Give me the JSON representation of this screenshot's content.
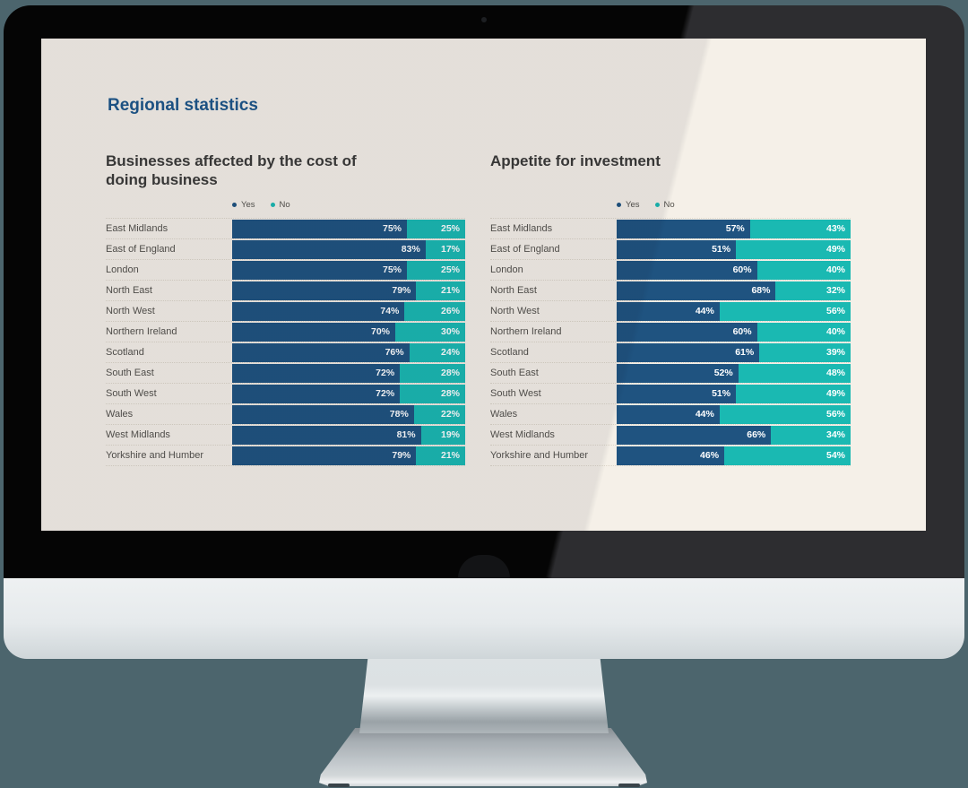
{
  "heading": {
    "title": "Regional statistics"
  },
  "colors": {
    "yes_bar": "#1f5380",
    "no_bar": "#1ab9b2",
    "heading_blue": "#1d5689",
    "chart_title_gray": "#3b3a38",
    "screen_background": "#f5f0e8",
    "desk_background": "#4c656d"
  },
  "chart_data": [
    {
      "type": "bar",
      "orientation": "horizontal",
      "stacked": true,
      "unit": "%",
      "xlim": [
        0,
        100
      ],
      "grid": false,
      "legend_position": "top",
      "title": "Businesses affected by the cost of doing business",
      "title_lines": [
        "Businesses affected by the cost of",
        "doing business"
      ],
      "legend": [
        "Yes",
        "No"
      ],
      "categories": [
        "East Midlands",
        "East of England",
        "London",
        "North East",
        "North West",
        "Northern Ireland",
        "Scotland",
        "South East",
        "South West",
        "Wales",
        "West Midlands",
        "Yorkshire and Humber"
      ],
      "series": [
        {
          "name": "Yes",
          "color": "#1f5380",
          "values": [
            75,
            83,
            75,
            79,
            74,
            70,
            76,
            72,
            72,
            78,
            81,
            79
          ]
        },
        {
          "name": "No",
          "color": "#1ab9b2",
          "values": [
            25,
            17,
            25,
            21,
            26,
            30,
            24,
            28,
            28,
            22,
            19,
            21
          ]
        }
      ],
      "data_labels": "percent-inside-right-aligned"
    },
    {
      "type": "bar",
      "orientation": "horizontal",
      "stacked": true,
      "unit": "%",
      "xlim": [
        0,
        100
      ],
      "grid": false,
      "legend_position": "top",
      "title": "Appetite for investment",
      "title_lines": [
        "Appetite for investment"
      ],
      "legend": [
        "Yes",
        "No"
      ],
      "categories": [
        "East Midlands",
        "East of England",
        "London",
        "North East",
        "North West",
        "Northern Ireland",
        "Scotland",
        "South East",
        "South West",
        "Wales",
        "West Midlands",
        "Yorkshire and Humber"
      ],
      "series": [
        {
          "name": "Yes",
          "color": "#1f5380",
          "values": [
            57,
            51,
            60,
            68,
            44,
            60,
            61,
            52,
            51,
            44,
            66,
            46
          ]
        },
        {
          "name": "No",
          "color": "#1ab9b2",
          "values": [
            43,
            49,
            40,
            32,
            56,
            40,
            39,
            48,
            49,
            56,
            34,
            54
          ]
        }
      ],
      "data_labels": "percent-inside-right-aligned"
    }
  ],
  "device": {
    "type": "desktop-monitor-mockup"
  }
}
